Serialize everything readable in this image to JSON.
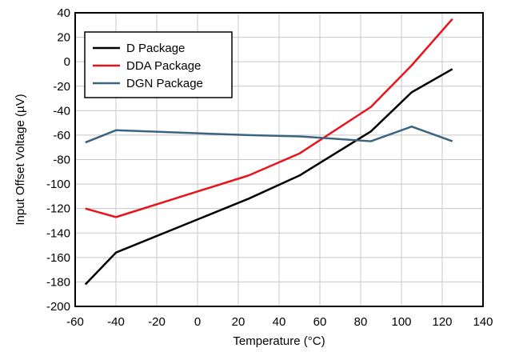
{
  "chart_data": {
    "type": "line",
    "title": "",
    "xlabel": "Temperature (°C)",
    "ylabel": "Input Offset Voltage (µV)",
    "xlim": [
      -60,
      140
    ],
    "ylim": [
      -200,
      40
    ],
    "xticks": [
      -60,
      -40,
      -20,
      0,
      20,
      40,
      60,
      80,
      100,
      120,
      140
    ],
    "yticks": [
      -200,
      -180,
      -160,
      -140,
      -120,
      -100,
      -80,
      -60,
      -40,
      -20,
      0,
      20,
      40
    ],
    "grid": true,
    "legend_position": "top-left",
    "series": [
      {
        "name": "D Package",
        "color": "#000000",
        "x": [
          -55,
          -40,
          25,
          50,
          85,
          105,
          125
        ],
        "y": [
          -182,
          -156,
          -112,
          -93,
          -57,
          -25,
          -6
        ]
      },
      {
        "name": "DDA Package",
        "color": "#e8141b",
        "x": [
          -55,
          -40,
          25,
          50,
          85,
          105,
          125
        ],
        "y": [
          -120,
          -127,
          -93,
          -75,
          -37,
          -3,
          35
        ]
      },
      {
        "name": "DGN Package",
        "color": "#3b6481",
        "x": [
          -55,
          -40,
          25,
          50,
          85,
          105,
          125
        ],
        "y": [
          -66,
          -56,
          -60,
          -61,
          -65,
          -53,
          -65
        ]
      }
    ]
  }
}
